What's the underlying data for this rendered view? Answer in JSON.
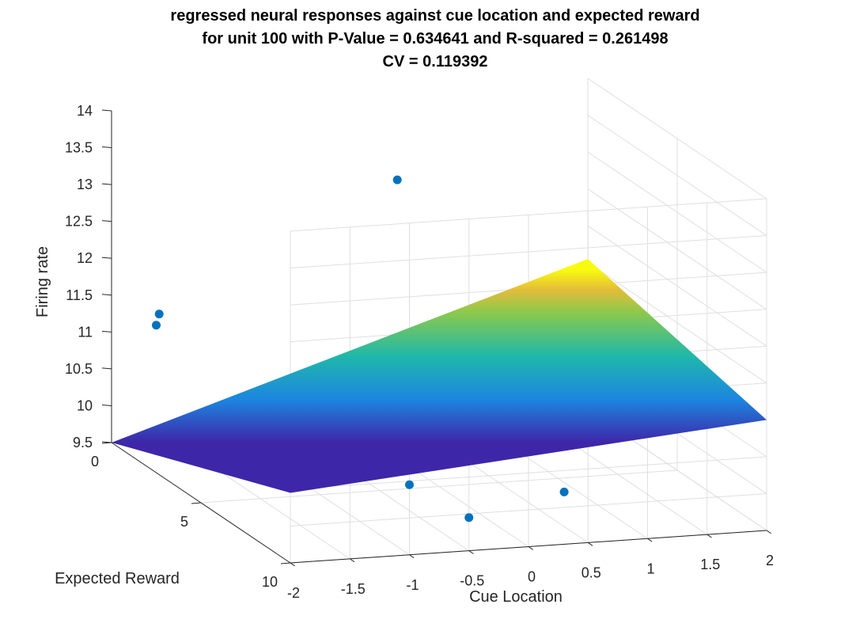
{
  "chart_data": {
    "type": "surface3d",
    "title": [
      "regressed neural responses against cue location and expected reward",
      "for unit 100 with P-Value = 0.634641 and R-squared = 0.261498",
      "CV = 0.119392"
    ],
    "xlabel": "Cue Location",
    "ylabel": "Expected Reward",
    "zlabel": "Firing rate",
    "xlim": [
      -2,
      2
    ],
    "ylim": [
      0,
      10
    ],
    "zlim": [
      9.5,
      14
    ],
    "xticks": [
      "-2",
      "-1.5",
      "-1",
      "-0.5",
      "0",
      "0.5",
      "1",
      "1.5",
      "2"
    ],
    "yticks": [
      "0",
      "5",
      "10"
    ],
    "zticks": [
      "9.5",
      "10",
      "10.5",
      "11",
      "11.5",
      "12",
      "12.5",
      "13",
      "13.5",
      "14"
    ],
    "grid": true,
    "colormap": "parula",
    "surface": {
      "x": [
        -2,
        2
      ],
      "y": [
        0,
        10
      ],
      "z": [
        [
          9.5,
          11.55
        ],
        [
          10.45,
          11.0
        ]
      ]
    },
    "points_color": "#0072BD",
    "points": [
      {
        "x": -1.0,
        "y": 10.0,
        "z": 10.45
      },
      {
        "x": -2.0,
        "y": 2.5,
        "z": 11.5
      },
      {
        "x": -1.6,
        "y": 0.0,
        "z": 11.2
      },
      {
        "x": -0.5,
        "y": 10.0,
        "z": 9.95
      },
      {
        "x": 0.6,
        "y": 8.0,
        "z": 9.85
      },
      {
        "x": 0.4,
        "y": 0.0,
        "z": 12.8
      }
    ]
  }
}
